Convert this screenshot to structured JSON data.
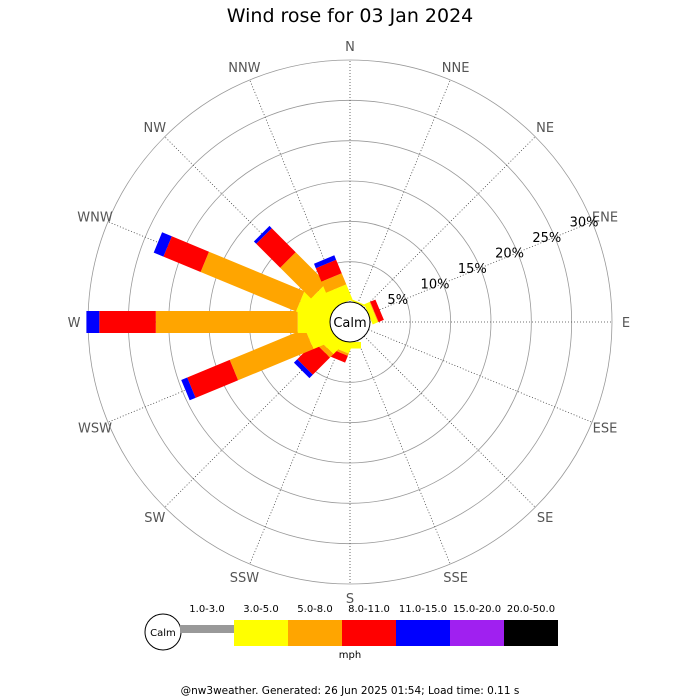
{
  "title": "Wind rose for 03 Jan 2024",
  "footer": "@nw3weather. Generated: 26 Jun 2025 01:54; Load time: 0.11 s",
  "calm_label": "Calm",
  "units_label": "mph",
  "chart_data": {
    "type": "wind-rose",
    "title": "Wind rose for 03 Jan 2024",
    "directions": [
      "N",
      "NNE",
      "NE",
      "ENE",
      "E",
      "ESE",
      "SE",
      "SSE",
      "S",
      "SSW",
      "SW",
      "WSW",
      "W",
      "WNW",
      "NW",
      "NNW"
    ],
    "radial_unit": "%",
    "radial_max": 30,
    "ring_labels": [
      "5%",
      "10%",
      "15%",
      "20%",
      "25%",
      "30%"
    ],
    "ring_values": [
      5,
      10,
      15,
      20,
      25,
      30
    ],
    "speed_bins": [
      {
        "label": "1.0-3.0",
        "color": "#999999"
      },
      {
        "label": "3.0-5.0",
        "color": "#ffff00"
      },
      {
        "label": "5.0-8.0",
        "color": "#ffa500"
      },
      {
        "label": "8.0-11.0",
        "color": "#ff0000"
      },
      {
        "label": "11.0-15.0",
        "color": "#0000ff"
      },
      {
        "label": "15.0-20.0",
        "color": "#a020f0"
      },
      {
        "label": "20.0-50.0",
        "color": "#000000"
      }
    ],
    "cumulative_percent": {
      "N": [
        0,
        0,
        0,
        0,
        0,
        0,
        0
      ],
      "NNE": [
        0,
        0.2,
        0.2,
        0.2,
        0.2,
        0.2,
        0.2
      ],
      "NE": [
        0,
        0,
        0,
        0,
        0,
        0,
        0
      ],
      "ENE": [
        0,
        0.7,
        0.8,
        1.5,
        1.5,
        1.5,
        1.5
      ],
      "E": [
        0,
        0,
        0,
        0,
        0,
        0,
        0
      ],
      "ESE": [
        0,
        0,
        0,
        0,
        0,
        0,
        0
      ],
      "SE": [
        0,
        0,
        0,
        0,
        0,
        0,
        0
      ],
      "SSE": [
        0,
        0,
        0,
        0,
        0,
        0,
        0
      ],
      "S": [
        0,
        0.8,
        0.8,
        0.8,
        0.8,
        0.8,
        0.8
      ],
      "SSW": [
        0,
        1.2,
        1.5,
        2.4,
        2.4,
        2.4,
        2.4
      ],
      "SW": [
        0,
        1.8,
        2.4,
        5.4,
        6.0,
        6.0,
        6.0
      ],
      "WSW": [
        0,
        3.0,
        13.1,
        18.8,
        19.6,
        19.6,
        19.6
      ],
      "W": [
        0,
        4.0,
        21.6,
        28.6,
        30.2,
        30.2,
        30.2
      ],
      "WNW": [
        0,
        4.2,
        17.0,
        22.0,
        23.3,
        23.3,
        23.3
      ],
      "NW": [
        0,
        3.0,
        8.4,
        12.6,
        13.0,
        13.0,
        13.0
      ],
      "NNW": [
        0,
        2.0,
        3.5,
        5.3,
        5.9,
        5.9,
        5.9
      ]
    }
  }
}
